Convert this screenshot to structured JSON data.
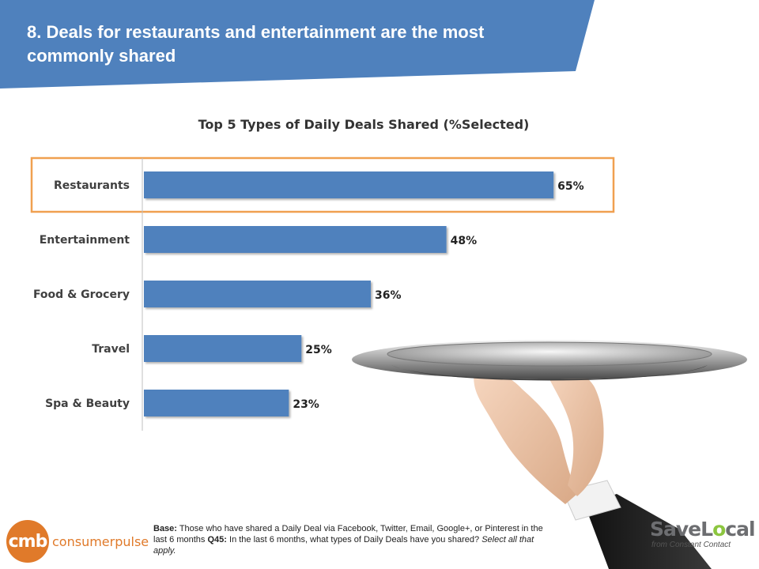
{
  "slide": {
    "title": "8. Deals for restaurants and entertainment are the most commonly shared"
  },
  "chart_data": {
    "type": "bar",
    "orientation": "horizontal",
    "title": "Top 5 Types of Daily Deals Shared (%Selected)",
    "categories": [
      "Restaurants",
      "Entertainment",
      "Food & Grocery",
      "Travel",
      "Spa & Beauty"
    ],
    "values": [
      65,
      48,
      36,
      25,
      23
    ],
    "value_labels": [
      "65%",
      "48%",
      "36%",
      "25%",
      "23%"
    ],
    "xlim": [
      0,
      70
    ],
    "grid": false,
    "highlighted_category": "Restaurants",
    "colors": {
      "bar": "#4f81bd",
      "highlight": "#f0a050"
    }
  },
  "footnote": {
    "base_label": "Base:",
    "base_text": " Those who have shared a Daily Deal via Facebook, Twitter, Email, Google+, or Pinterest in the last 6 months ",
    "question_label": "Q45:",
    "question_text": " In the last 6 months, what types of Daily Deals have you shared? ",
    "instruction": "Select all that apply."
  },
  "logos": {
    "cmb_mark": "cmb",
    "cmb_text": "consumerpulse",
    "savelocal_pre": "SaveL",
    "savelocal_o": "o",
    "savelocal_post": "cal",
    "savelocal_tagline": "from Constant Contact"
  },
  "colors": {
    "header": "#4f81bd",
    "text_dark": "#333333",
    "cmb_orange": "#e07a2a",
    "savelocal_gray": "#6d6e71",
    "savelocal_green": "#8cc63f"
  },
  "images": {
    "tray_hand": "silver-tray-held-by-gloved-hand"
  }
}
